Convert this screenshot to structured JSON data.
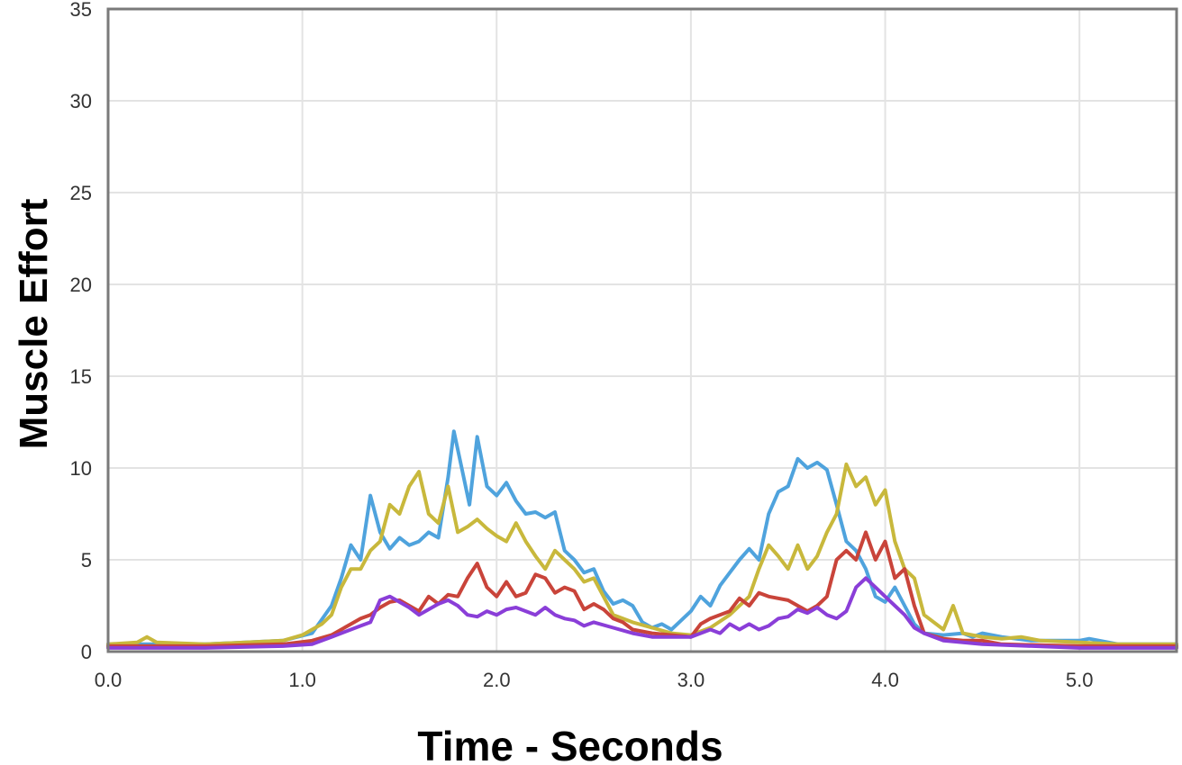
{
  "chart_data": {
    "type": "line",
    "title": "",
    "xlabel": "Time - Seconds",
    "ylabel": "Muscle Effort",
    "xlim": [
      0,
      5.5
    ],
    "ylim": [
      0,
      35
    ],
    "xticks": [
      0,
      1,
      2,
      3,
      4,
      5
    ],
    "xtick_labels": [
      "0.0",
      "1.0",
      "2.0",
      "3.0",
      "4.0",
      "5.0"
    ],
    "yticks": [
      0,
      5,
      10,
      15,
      20,
      25,
      30,
      35
    ],
    "ytick_labels": [
      "0",
      "5",
      "10",
      "15",
      "20",
      "25",
      "30",
      "35"
    ],
    "grid": true,
    "legend": "none",
    "series": [
      {
        "color": "#4fa3dd",
        "points": [
          [
            0,
            0.4
          ],
          [
            0.5,
            0.4
          ],
          [
            0.9,
            0.6
          ],
          [
            1.05,
            1.0
          ],
          [
            1.15,
            2.5
          ],
          [
            1.2,
            4.0
          ],
          [
            1.25,
            5.8
          ],
          [
            1.3,
            5.0
          ],
          [
            1.35,
            8.5
          ],
          [
            1.4,
            6.5
          ],
          [
            1.45,
            5.6
          ],
          [
            1.5,
            6.2
          ],
          [
            1.55,
            5.8
          ],
          [
            1.6,
            6.0
          ],
          [
            1.65,
            6.5
          ],
          [
            1.7,
            6.2
          ],
          [
            1.75,
            9.5
          ],
          [
            1.78,
            12.0
          ],
          [
            1.82,
            10.0
          ],
          [
            1.86,
            8.0
          ],
          [
            1.9,
            11.7
          ],
          [
            1.95,
            9.0
          ],
          [
            2.0,
            8.5
          ],
          [
            2.05,
            9.2
          ],
          [
            2.1,
            8.2
          ],
          [
            2.15,
            7.5
          ],
          [
            2.2,
            7.6
          ],
          [
            2.25,
            7.3
          ],
          [
            2.3,
            7.6
          ],
          [
            2.35,
            5.5
          ],
          [
            2.4,
            5.0
          ],
          [
            2.45,
            4.3
          ],
          [
            2.5,
            4.5
          ],
          [
            2.55,
            3.3
          ],
          [
            2.6,
            2.6
          ],
          [
            2.65,
            2.8
          ],
          [
            2.7,
            2.5
          ],
          [
            2.75,
            1.6
          ],
          [
            2.8,
            1.3
          ],
          [
            2.85,
            1.5
          ],
          [
            2.9,
            1.2
          ],
          [
            2.95,
            1.7
          ],
          [
            3.0,
            2.2
          ],
          [
            3.05,
            3.0
          ],
          [
            3.1,
            2.5
          ],
          [
            3.15,
            3.6
          ],
          [
            3.2,
            4.3
          ],
          [
            3.25,
            5.0
          ],
          [
            3.3,
            5.6
          ],
          [
            3.35,
            5.0
          ],
          [
            3.4,
            7.5
          ],
          [
            3.45,
            8.7
          ],
          [
            3.5,
            9.0
          ],
          [
            3.55,
            10.5
          ],
          [
            3.6,
            10.0
          ],
          [
            3.65,
            10.3
          ],
          [
            3.7,
            9.9
          ],
          [
            3.75,
            8.0
          ],
          [
            3.8,
            6.0
          ],
          [
            3.85,
            5.5
          ],
          [
            3.9,
            4.5
          ],
          [
            3.95,
            3.0
          ],
          [
            4.0,
            2.7
          ],
          [
            4.05,
            3.5
          ],
          [
            4.1,
            2.5
          ],
          [
            4.15,
            1.5
          ],
          [
            4.2,
            1.0
          ],
          [
            4.3,
            0.9
          ],
          [
            4.4,
            1.0
          ],
          [
            4.45,
            0.8
          ],
          [
            4.5,
            1.0
          ],
          [
            4.6,
            0.8
          ],
          [
            4.75,
            0.6
          ],
          [
            5.0,
            0.6
          ],
          [
            5.05,
            0.7
          ],
          [
            5.2,
            0.4
          ],
          [
            5.5,
            0.4
          ]
        ]
      },
      {
        "color": "#c8b83c",
        "points": [
          [
            0,
            0.4
          ],
          [
            0.15,
            0.5
          ],
          [
            0.2,
            0.8
          ],
          [
            0.25,
            0.5
          ],
          [
            0.5,
            0.4
          ],
          [
            0.9,
            0.6
          ],
          [
            1.0,
            0.9
          ],
          [
            1.1,
            1.5
          ],
          [
            1.15,
            2.0
          ],
          [
            1.2,
            3.5
          ],
          [
            1.25,
            4.5
          ],
          [
            1.3,
            4.5
          ],
          [
            1.35,
            5.5
          ],
          [
            1.4,
            6.0
          ],
          [
            1.45,
            8.0
          ],
          [
            1.5,
            7.5
          ],
          [
            1.55,
            9.0
          ],
          [
            1.6,
            9.8
          ],
          [
            1.65,
            7.5
          ],
          [
            1.7,
            7.0
          ],
          [
            1.75,
            9.0
          ],
          [
            1.8,
            6.5
          ],
          [
            1.85,
            6.8
          ],
          [
            1.9,
            7.2
          ],
          [
            1.95,
            6.7
          ],
          [
            2.0,
            6.3
          ],
          [
            2.05,
            6.0
          ],
          [
            2.1,
            7.0
          ],
          [
            2.15,
            6.0
          ],
          [
            2.2,
            5.2
          ],
          [
            2.25,
            4.5
          ],
          [
            2.3,
            5.5
          ],
          [
            2.35,
            5.0
          ],
          [
            2.4,
            4.5
          ],
          [
            2.45,
            3.8
          ],
          [
            2.5,
            4.0
          ],
          [
            2.55,
            3.0
          ],
          [
            2.6,
            2.0
          ],
          [
            2.65,
            1.8
          ],
          [
            2.7,
            1.6
          ],
          [
            2.8,
            1.3
          ],
          [
            2.9,
            1.0
          ],
          [
            3.0,
            0.9
          ],
          [
            3.1,
            1.3
          ],
          [
            3.2,
            2.0
          ],
          [
            3.3,
            3.0
          ],
          [
            3.35,
            4.5
          ],
          [
            3.4,
            5.8
          ],
          [
            3.45,
            5.2
          ],
          [
            3.5,
            4.5
          ],
          [
            3.55,
            5.8
          ],
          [
            3.6,
            4.5
          ],
          [
            3.65,
            5.2
          ],
          [
            3.7,
            6.5
          ],
          [
            3.75,
            7.5
          ],
          [
            3.8,
            10.2
          ],
          [
            3.85,
            9.0
          ],
          [
            3.9,
            9.5
          ],
          [
            3.95,
            8.0
          ],
          [
            4.0,
            8.8
          ],
          [
            4.05,
            6.0
          ],
          [
            4.1,
            4.5
          ],
          [
            4.15,
            4.0
          ],
          [
            4.2,
            2.0
          ],
          [
            4.3,
            1.2
          ],
          [
            4.35,
            2.5
          ],
          [
            4.4,
            1.0
          ],
          [
            4.5,
            0.8
          ],
          [
            4.6,
            0.7
          ],
          [
            4.7,
            0.8
          ],
          [
            4.8,
            0.6
          ],
          [
            5.0,
            0.5
          ],
          [
            5.2,
            0.4
          ],
          [
            5.5,
            0.4
          ]
        ]
      },
      {
        "color": "#c9443a",
        "points": [
          [
            0,
            0.3
          ],
          [
            0.5,
            0.3
          ],
          [
            0.9,
            0.4
          ],
          [
            1.05,
            0.6
          ],
          [
            1.15,
            0.9
          ],
          [
            1.25,
            1.5
          ],
          [
            1.3,
            1.8
          ],
          [
            1.35,
            2.0
          ],
          [
            1.4,
            2.4
          ],
          [
            1.45,
            2.7
          ],
          [
            1.5,
            2.8
          ],
          [
            1.55,
            2.5
          ],
          [
            1.6,
            2.2
          ],
          [
            1.65,
            3.0
          ],
          [
            1.7,
            2.6
          ],
          [
            1.75,
            3.1
          ],
          [
            1.8,
            3.0
          ],
          [
            1.85,
            4.0
          ],
          [
            1.9,
            4.8
          ],
          [
            1.95,
            3.5
          ],
          [
            2.0,
            3.0
          ],
          [
            2.05,
            3.8
          ],
          [
            2.1,
            3.0
          ],
          [
            2.15,
            3.2
          ],
          [
            2.2,
            4.2
          ],
          [
            2.25,
            4.0
          ],
          [
            2.3,
            3.2
          ],
          [
            2.35,
            3.5
          ],
          [
            2.4,
            3.3
          ],
          [
            2.45,
            2.3
          ],
          [
            2.5,
            2.6
          ],
          [
            2.55,
            2.3
          ],
          [
            2.6,
            1.8
          ],
          [
            2.65,
            1.6
          ],
          [
            2.7,
            1.2
          ],
          [
            2.8,
            1.0
          ],
          [
            2.9,
            0.9
          ],
          [
            3.0,
            0.8
          ],
          [
            3.05,
            1.5
          ],
          [
            3.1,
            1.8
          ],
          [
            3.2,
            2.2
          ],
          [
            3.25,
            2.9
          ],
          [
            3.3,
            2.5
          ],
          [
            3.35,
            3.2
          ],
          [
            3.4,
            3.0
          ],
          [
            3.5,
            2.8
          ],
          [
            3.55,
            2.5
          ],
          [
            3.6,
            2.2
          ],
          [
            3.65,
            2.5
          ],
          [
            3.7,
            3.0
          ],
          [
            3.75,
            5.0
          ],
          [
            3.8,
            5.5
          ],
          [
            3.85,
            5.0
          ],
          [
            3.9,
            6.5
          ],
          [
            3.95,
            5.0
          ],
          [
            4.0,
            6.0
          ],
          [
            4.05,
            4.0
          ],
          [
            4.1,
            4.5
          ],
          [
            4.15,
            2.5
          ],
          [
            4.2,
            1.0
          ],
          [
            4.3,
            0.7
          ],
          [
            4.4,
            0.6
          ],
          [
            4.5,
            0.6
          ],
          [
            4.6,
            0.4
          ],
          [
            5.0,
            0.3
          ],
          [
            5.5,
            0.3
          ]
        ]
      },
      {
        "color": "#8a3ed8",
        "points": [
          [
            0,
            0.2
          ],
          [
            0.5,
            0.2
          ],
          [
            0.9,
            0.3
          ],
          [
            1.05,
            0.4
          ],
          [
            1.15,
            0.8
          ],
          [
            1.25,
            1.2
          ],
          [
            1.3,
            1.4
          ],
          [
            1.35,
            1.6
          ],
          [
            1.4,
            2.8
          ],
          [
            1.45,
            3.0
          ],
          [
            1.5,
            2.7
          ],
          [
            1.55,
            2.4
          ],
          [
            1.6,
            2.0
          ],
          [
            1.65,
            2.3
          ],
          [
            1.7,
            2.6
          ],
          [
            1.75,
            2.8
          ],
          [
            1.8,
            2.5
          ],
          [
            1.85,
            2.0
          ],
          [
            1.9,
            1.9
          ],
          [
            1.95,
            2.2
          ],
          [
            2.0,
            2.0
          ],
          [
            2.05,
            2.3
          ],
          [
            2.1,
            2.4
          ],
          [
            2.15,
            2.2
          ],
          [
            2.2,
            2.0
          ],
          [
            2.25,
            2.4
          ],
          [
            2.3,
            2.0
          ],
          [
            2.35,
            1.8
          ],
          [
            2.4,
            1.7
          ],
          [
            2.45,
            1.4
          ],
          [
            2.5,
            1.6
          ],
          [
            2.6,
            1.3
          ],
          [
            2.7,
            1.0
          ],
          [
            2.8,
            0.8
          ],
          [
            2.9,
            0.8
          ],
          [
            3.0,
            0.8
          ],
          [
            3.05,
            1.0
          ],
          [
            3.1,
            1.2
          ],
          [
            3.15,
            1.0
          ],
          [
            3.2,
            1.5
          ],
          [
            3.25,
            1.2
          ],
          [
            3.3,
            1.5
          ],
          [
            3.35,
            1.2
          ],
          [
            3.4,
            1.4
          ],
          [
            3.45,
            1.8
          ],
          [
            3.5,
            1.9
          ],
          [
            3.55,
            2.3
          ],
          [
            3.6,
            2.1
          ],
          [
            3.65,
            2.4
          ],
          [
            3.7,
            2.0
          ],
          [
            3.75,
            1.8
          ],
          [
            3.8,
            2.2
          ],
          [
            3.85,
            3.5
          ],
          [
            3.9,
            4.0
          ],
          [
            3.95,
            3.5
          ],
          [
            4.0,
            3.0
          ],
          [
            4.05,
            2.5
          ],
          [
            4.1,
            2.0
          ],
          [
            4.15,
            1.3
          ],
          [
            4.2,
            1.0
          ],
          [
            4.3,
            0.6
          ],
          [
            4.4,
            0.5
          ],
          [
            4.5,
            0.4
          ],
          [
            5.0,
            0.2
          ],
          [
            5.5,
            0.2
          ]
        ]
      }
    ]
  }
}
